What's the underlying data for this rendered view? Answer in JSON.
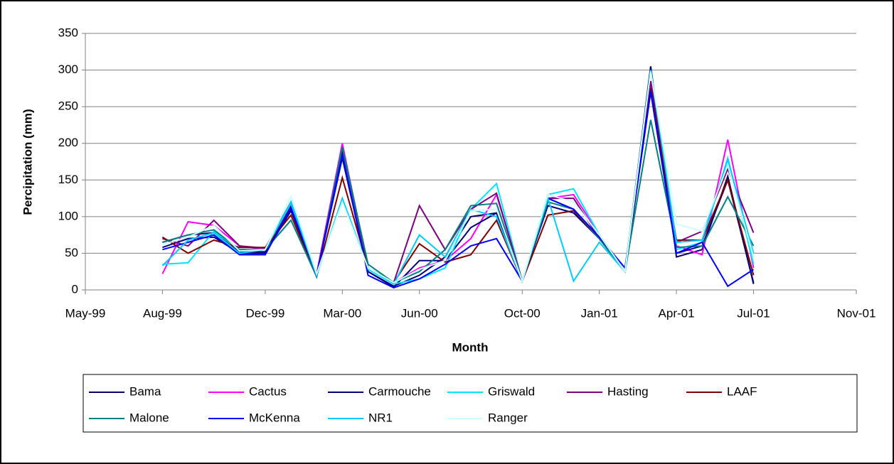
{
  "chart_data": {
    "type": "line",
    "y_label": "Percipitation (mm)",
    "x_label": "Month",
    "x": [
      "Aug-99",
      "Sep-99",
      "Oct-99",
      "Nov-99",
      "Dec-99",
      "Jan-00",
      "Feb-00",
      "Mar-00",
      "Apr-00",
      "May-00",
      "Jun-00",
      "Jul-00",
      "Aug-00",
      "Sep-00",
      "Oct-00",
      "Nov-00",
      "Dec-00",
      "Jan-01",
      "Feb-01",
      "Mar-01",
      "Apr-01",
      "May-01",
      "Jun-01",
      "Jul-01"
    ],
    "xticks": [
      "May-99",
      "Aug-99",
      "Dec-99",
      "Mar-00",
      "Jun-00",
      "Oct-00",
      "Jan-01",
      "Apr-01",
      "Jul-01",
      "Nov-01"
    ],
    "ylim": [
      0,
      350
    ],
    "yticks": [
      0,
      50,
      100,
      150,
      200,
      250,
      300,
      350
    ],
    "grid": true,
    "series": [
      {
        "name": "Bama",
        "color": "#000066",
        "values": [
          65,
          75,
          78,
          52,
          52,
          115,
          20,
          190,
          25,
          5,
          20,
          45,
          100,
          105,
          12,
          125,
          110,
          70,
          25,
          305,
          45,
          55,
          155,
          8
        ]
      },
      {
        "name": "Cactus",
        "color": "#ff00ff",
        "values": [
          22,
          93,
          88,
          60,
          55,
          118,
          22,
          200,
          30,
          10,
          30,
          40,
          70,
          130,
          12,
          125,
          130,
          75,
          25,
          280,
          60,
          48,
          205,
          30
        ]
      },
      {
        "name": "Carmouche",
        "color": "#000080",
        "values": [
          58,
          70,
          72,
          50,
          50,
          108,
          20,
          180,
          25,
          4,
          40,
          40,
          85,
          105,
          12,
          115,
          105,
          70,
          25,
          270,
          50,
          60,
          150,
          10
        ]
      },
      {
        "name": "Griswald",
        "color": "#00e5ff",
        "values": [
          35,
          37,
          80,
          55,
          55,
          118,
          20,
          185,
          28,
          8,
          15,
          30,
          110,
          145,
          12,
          130,
          138,
          75,
          25,
          300,
          55,
          65,
          180,
          35
        ]
      },
      {
        "name": "Hasting",
        "color": "#800080",
        "values": [
          70,
          60,
          95,
          60,
          57,
          120,
          20,
          195,
          30,
          10,
          115,
          55,
          110,
          132,
          12,
          125,
          125,
          70,
          25,
          285,
          65,
          80,
          165,
          78
        ]
      },
      {
        "name": "LAAF",
        "color": "#800000",
        "values": [
          72,
          50,
          68,
          58,
          58,
          102,
          18,
          153,
          30,
          10,
          63,
          38,
          48,
          95,
          12,
          102,
          108,
          70,
          25,
          275,
          68,
          68,
          150,
          20
        ]
      },
      {
        "name": "Malone",
        "color": "#008080",
        "values": [
          65,
          75,
          82,
          55,
          55,
          95,
          18,
          195,
          35,
          10,
          25,
          55,
          115,
          118,
          12,
          120,
          110,
          70,
          25,
          232,
          58,
          60,
          127,
          60
        ]
      },
      {
        "name": "McKenna",
        "color": "#0000ff",
        "values": [
          55,
          65,
          75,
          48,
          48,
          112,
          20,
          185,
          20,
          3,
          15,
          35,
          60,
          70,
          12,
          125,
          110,
          72,
          30,
          272,
          50,
          65,
          5,
          28
        ]
      },
      {
        "name": "NR1",
        "color": "#00ccff",
        "values": [
          33,
          68,
          78,
          50,
          55,
          120,
          20,
          125,
          30,
          8,
          75,
          45,
          110,
          100,
          12,
          125,
          12,
          65,
          25,
          300,
          65,
          68,
          178,
          50
        ]
      },
      {
        "name": "Ranger",
        "color": "#ccffff",
        "values": [
          62,
          72,
          88,
          53,
          55,
          128,
          22,
          120,
          30,
          10,
          28,
          40,
          108,
          110,
          12,
          130,
          120,
          75,
          25,
          298,
          90,
          80,
          170,
          45
        ]
      }
    ]
  }
}
